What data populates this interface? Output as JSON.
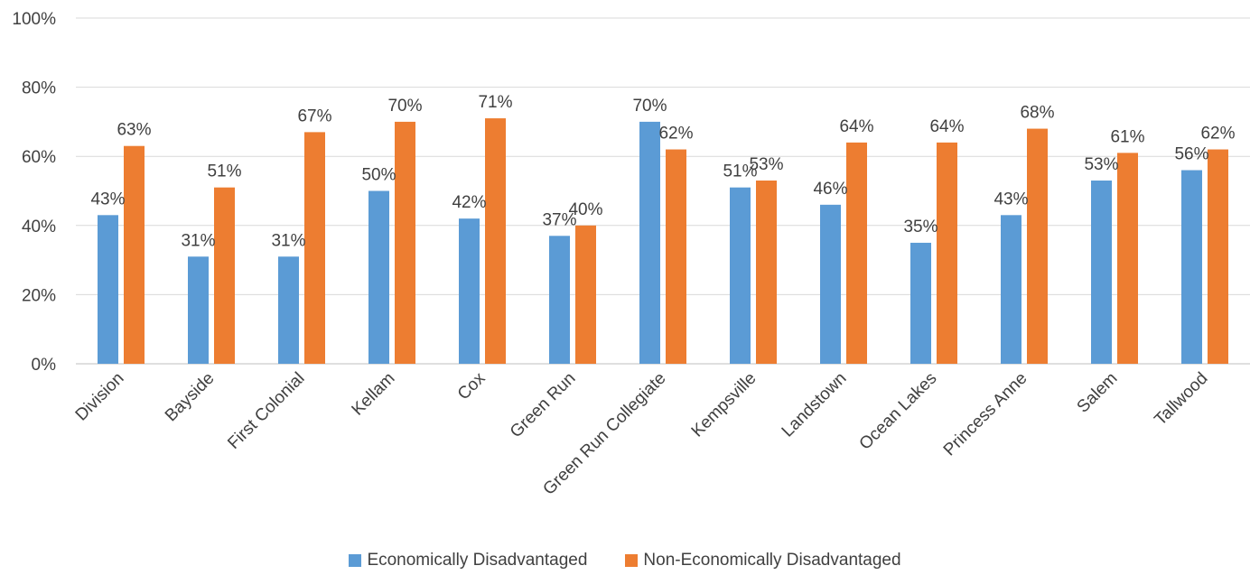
{
  "chart_data": {
    "type": "bar",
    "categories": [
      "Division",
      "Bayside",
      "First Colonial",
      "Kellam",
      "Cox",
      "Green Run",
      "Green Run Collegiate",
      "Kempsville",
      "Landstown",
      "Ocean Lakes",
      "Princess Anne",
      "Salem",
      "Tallwood"
    ],
    "series": [
      {
        "name": "Economically Disadvantaged",
        "color": "#5b9bd5",
        "values": [
          43,
          31,
          31,
          50,
          42,
          37,
          70,
          51,
          46,
          35,
          43,
          53,
          56
        ],
        "labels": [
          "43%",
          "31%",
          "31%",
          "50%",
          "42%",
          "37%",
          "70%",
          "51%",
          "46%",
          "35%",
          "43%",
          "53%",
          "56%"
        ]
      },
      {
        "name": "Non-Economically Disadvantaged",
        "color": "#ed7d31",
        "values": [
          63,
          51,
          67,
          70,
          71,
          40,
          62,
          53,
          64,
          64,
          68,
          61,
          62
        ],
        "labels": [
          "63%",
          "51%",
          "67%",
          "70%",
          "71%",
          "40%",
          "62%",
          "53%",
          "64%",
          "64%",
          "68%",
          "61%",
          "62%"
        ]
      }
    ],
    "ylim": [
      0,
      100
    ],
    "yticks": [
      "0%",
      "20%",
      "40%",
      "60%",
      "80%",
      "100%"
    ],
    "gridlines": true,
    "legend_position": "bottom"
  }
}
